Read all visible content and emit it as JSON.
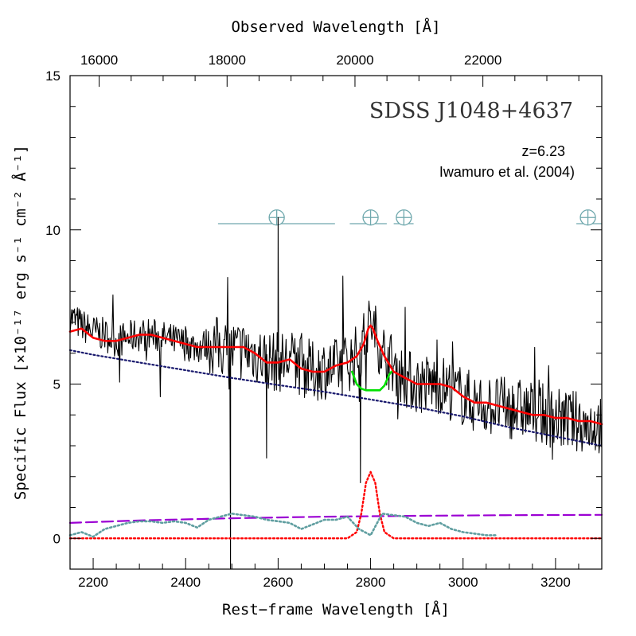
{
  "chart_data": {
    "type": "line",
    "title": "SDSS J1048+4637",
    "annotations": {
      "redshift": "z=6.23",
      "reference": "Iwamuro et al. (2004)"
    },
    "xlabel": "Rest−frame Wavelength [Å]",
    "xlabel_top": "Observed Wavelength [Å]",
    "ylabel": "Specific Flux [×10⁻¹⁷ erg s⁻¹ cm⁻² Å⁻¹]",
    "xlim": [
      2150,
      3300
    ],
    "ylim": [
      -1,
      15
    ],
    "xticks": [
      2200,
      2400,
      2600,
      2800,
      3000,
      3200
    ],
    "xticks_top": [
      16000,
      18000,
      20000,
      22000
    ],
    "yticks": [
      0,
      5,
      10,
      15
    ],
    "redshift": 6.23,
    "telluric_symbols": [
      {
        "x": 2597,
        "span": [
          2470,
          2723
        ]
      },
      {
        "x": 2800,
        "span": [
          2755,
          2835
        ]
      },
      {
        "x": 2872,
        "span": [
          2850,
          2893
        ]
      },
      {
        "x": 3270,
        "span": [
          3245,
          3300
        ]
      }
    ],
    "series": [
      {
        "style": "black-line",
        "x": [
          2150,
          2175,
          2200,
          2225,
          2250,
          2275,
          2300,
          2325,
          2350,
          2375,
          2400,
          2425,
          2450,
          2475,
          2500,
          2525,
          2550,
          2575,
          2600,
          2625,
          2650,
          2675,
          2700,
          2725,
          2750,
          2775,
          2800,
          2825,
          2850,
          2875,
          2900,
          2925,
          2950,
          2975,
          3000,
          3025,
          3050,
          3075,
          3100,
          3125,
          3150,
          3175,
          3200,
          3225,
          3250,
          3275,
          3300
        ],
        "y": [
          7.2,
          6.9,
          6.7,
          6.6,
          6.4,
          6.5,
          6.6,
          6.6,
          6.5,
          6.4,
          6.3,
          6.2,
          6.3,
          6.2,
          6.1,
          6.1,
          6.0,
          5.8,
          5.7,
          5.8,
          5.6,
          5.4,
          5.5,
          5.5,
          5.7,
          6.0,
          7.0,
          6.1,
          5.6,
          5.2,
          5.0,
          5.0,
          5.0,
          4.8,
          4.6,
          4.4,
          4.3,
          4.3,
          4.2,
          4.2,
          4.1,
          4.0,
          3.9,
          3.8,
          3.8,
          3.7,
          3.7
        ]
      },
      {
        "style": "red-line",
        "x": [
          2150,
          2175,
          2200,
          2225,
          2250,
          2275,
          2300,
          2325,
          2350,
          2375,
          2400,
          2425,
          2450,
          2475,
          2500,
          2525,
          2550,
          2575,
          2600,
          2625,
          2650,
          2675,
          2700,
          2725,
          2750,
          2770,
          2785,
          2795,
          2800,
          2805,
          2815,
          2830,
          2850,
          2875,
          2900,
          2925,
          2950,
          2975,
          3000,
          3025,
          3050,
          3075,
          3100,
          3125,
          3150,
          3175,
          3200,
          3225,
          3250,
          3275,
          3300
        ],
        "y": [
          6.7,
          6.8,
          6.5,
          6.4,
          6.4,
          6.5,
          6.6,
          6.6,
          6.5,
          6.4,
          6.3,
          6.2,
          6.2,
          6.2,
          6.2,
          6.2,
          6.0,
          5.7,
          5.7,
          5.8,
          5.5,
          5.4,
          5.4,
          5.6,
          5.7,
          5.9,
          6.3,
          6.8,
          6.9,
          6.8,
          6.4,
          5.9,
          5.4,
          5.2,
          5.0,
          5.0,
          5.0,
          4.9,
          4.6,
          4.4,
          4.4,
          4.3,
          4.2,
          4.1,
          4.0,
          4.0,
          3.9,
          3.9,
          3.8,
          3.8,
          3.7
        ]
      },
      {
        "style": "green-line",
        "x": [
          2760,
          2770,
          2780,
          2790,
          2800,
          2810,
          2820,
          2830,
          2840,
          2845
        ],
        "y": [
          5.4,
          5.0,
          4.85,
          4.8,
          4.8,
          4.8,
          4.8,
          4.95,
          5.3,
          5.4
        ]
      },
      {
        "style": "blue-dotted",
        "x": [
          2150,
          2200,
          2300,
          2400,
          2500,
          2600,
          2700,
          2800,
          2900,
          3000,
          3100,
          3200,
          3300
        ],
        "y": [
          6.1,
          5.95,
          5.7,
          5.45,
          5.2,
          4.97,
          4.75,
          4.5,
          4.25,
          3.95,
          3.6,
          3.3,
          3.0
        ]
      },
      {
        "style": "purple-dashed",
        "x": [
          2150,
          2300,
          2500,
          2700,
          2900,
          3100,
          3300
        ],
        "y": [
          0.5,
          0.58,
          0.65,
          0.7,
          0.73,
          0.75,
          0.76
        ]
      },
      {
        "style": "red-dotted",
        "x": [
          2150,
          2700,
          2750,
          2770,
          2780,
          2790,
          2800,
          2810,
          2820,
          2830,
          2850,
          2900,
          3300
        ],
        "y": [
          0,
          0,
          0,
          0.2,
          0.8,
          1.8,
          2.15,
          1.8,
          0.8,
          0.2,
          0,
          0,
          0
        ]
      },
      {
        "style": "teal-dotted",
        "x": [
          2150,
          2175,
          2200,
          2225,
          2250,
          2275,
          2300,
          2325,
          2350,
          2375,
          2400,
          2425,
          2450,
          2475,
          2500,
          2525,
          2550,
          2575,
          2600,
          2625,
          2650,
          2675,
          2700,
          2725,
          2750,
          2775,
          2800,
          2825,
          2850,
          2875,
          2900,
          2925,
          2950,
          2975,
          3000,
          3025,
          3050,
          3075
        ],
        "y": [
          0.1,
          0.2,
          0.05,
          0.3,
          0.4,
          0.5,
          0.55,
          0.55,
          0.5,
          0.55,
          0.5,
          0.35,
          0.6,
          0.7,
          0.8,
          0.75,
          0.7,
          0.6,
          0.55,
          0.5,
          0.3,
          0.45,
          0.6,
          0.6,
          0.7,
          0.3,
          0.1,
          0.8,
          0.75,
          0.7,
          0.5,
          0.4,
          0.5,
          0.3,
          0.2,
          0.15,
          0.1,
          0.1
        ]
      }
    ]
  },
  "colors": {
    "black-line": "#000000",
    "red-line": "#ff0000",
    "green-line": "#00e000",
    "blue-dotted": "#1a1a6e",
    "purple-dashed": "#9b00d3",
    "red-dotted": "#ff0000",
    "teal-dotted": "#5f9ea0",
    "telluric": "#6fa8ad"
  }
}
